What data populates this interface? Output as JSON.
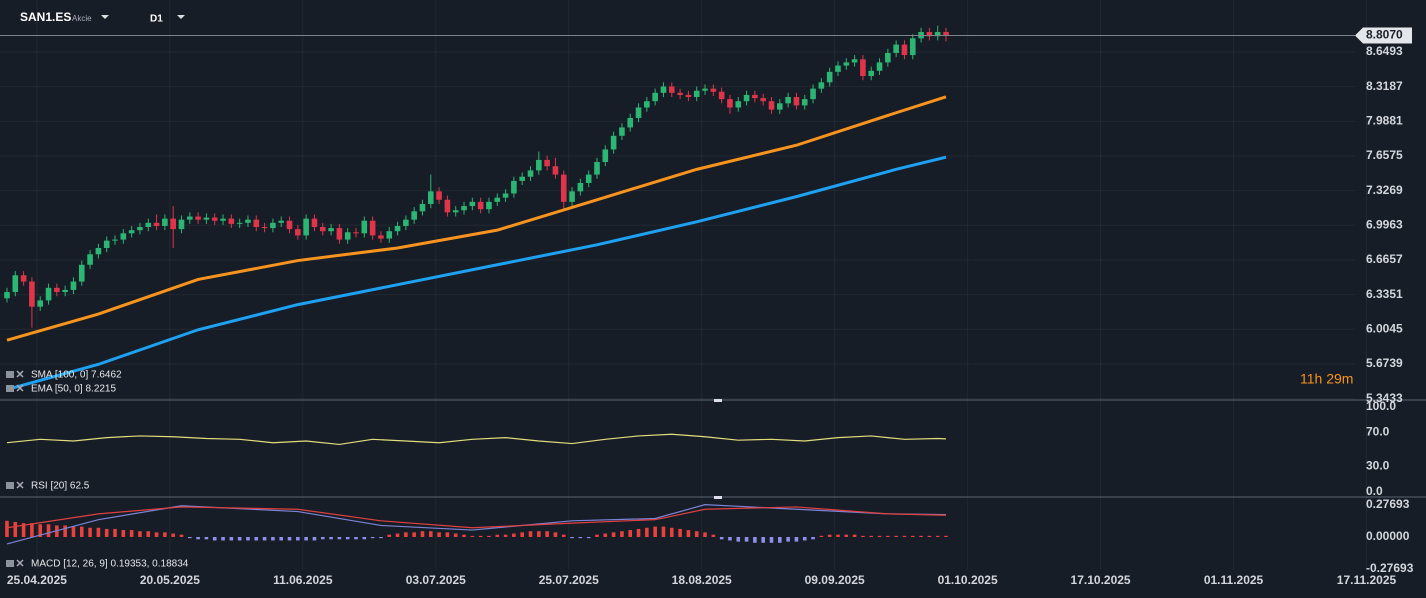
{
  "header": {
    "symbol": "SAN1.ES",
    "asset_type": "Akcie",
    "timeframe": "D1"
  },
  "countdown": "11h 29m",
  "chart_data": [
    {
      "type": "candlestick",
      "up_color": "#2bb673",
      "down_color": "#e0344b",
      "xlim": [
        -0.84,
        170.76
      ],
      "xticks": [
        {
          "value": 3.6,
          "label": "25.04.2025"
        },
        {
          "value": 19.6,
          "label": "20.05.2025"
        },
        {
          "value": 35.6,
          "label": "11.06.2025"
        },
        {
          "value": 51.6,
          "label": "03.07.2025"
        },
        {
          "value": 67.6,
          "label": "25.07.2025"
        },
        {
          "value": 83.6,
          "label": "18.08.2025"
        },
        {
          "value": 99.6,
          "label": "09.09.2025"
        },
        {
          "value": 115.6,
          "label": "01.10.2025"
        },
        {
          "value": 131.6,
          "label": "17.10.2025"
        },
        {
          "value": 147.6,
          "label": "01.11.2025"
        },
        {
          "value": 163.6,
          "label": "17.11.2025"
        }
      ],
      "ylim": [
        5.33,
        9.05
      ],
      "yticks": [
        5.3433,
        5.6739,
        6.0045,
        6.3351,
        6.6657,
        6.9963,
        7.3269,
        7.6575,
        7.9881,
        8.3187,
        8.6493
      ],
      "grid": true,
      "last_price": {
        "value": 8.807,
        "label": "8.8070"
      },
      "candles": [
        [
          6.3,
          6.4,
          6.26,
          6.36
        ],
        [
          6.36,
          6.56,
          6.32,
          6.52
        ],
        [
          6.52,
          6.56,
          6.42,
          6.46
        ],
        [
          6.46,
          6.5,
          6.02,
          6.22
        ],
        [
          6.22,
          6.32,
          6.18,
          6.28
        ],
        [
          6.28,
          6.44,
          6.24,
          6.4
        ],
        [
          6.4,
          6.44,
          6.32,
          6.36
        ],
        [
          6.36,
          6.42,
          6.32,
          6.38
        ],
        [
          6.38,
          6.5,
          6.34,
          6.46
        ],
        [
          6.46,
          6.66,
          6.42,
          6.62
        ],
        [
          6.62,
          6.76,
          6.58,
          6.72
        ],
        [
          6.72,
          6.82,
          6.68,
          6.78
        ],
        [
          6.78,
          6.89,
          6.74,
          6.85
        ],
        [
          6.85,
          6.9,
          6.81,
          6.86
        ],
        [
          6.86,
          6.96,
          6.82,
          6.92
        ],
        [
          6.92,
          6.99,
          6.88,
          6.95
        ],
        [
          6.95,
          7.02,
          6.91,
          6.98
        ],
        [
          6.98,
          7.06,
          6.94,
          7.02
        ],
        [
          7.02,
          7.1,
          6.95,
          6.99
        ],
        [
          6.99,
          7.1,
          6.95,
          7.06
        ],
        [
          7.06,
          7.18,
          6.78,
          6.96
        ],
        [
          6.96,
          7.09,
          6.92,
          7.05
        ],
        [
          7.05,
          7.12,
          7.01,
          7.08
        ],
        [
          7.08,
          7.12,
          7.01,
          7.05
        ],
        [
          7.05,
          7.11,
          7.01,
          7.07
        ],
        [
          7.07,
          7.11,
          7.0,
          7.04
        ],
        [
          7.04,
          7.1,
          7.0,
          7.06
        ],
        [
          7.06,
          7.1,
          6.97,
          7.01
        ],
        [
          7.01,
          7.06,
          6.97,
          7.02
        ],
        [
          7.02,
          7.09,
          6.98,
          7.05
        ],
        [
          7.05,
          7.09,
          6.94,
          6.98
        ],
        [
          6.98,
          7.02,
          6.93,
          6.97
        ],
        [
          6.97,
          7.06,
          6.93,
          7.02
        ],
        [
          7.02,
          7.08,
          6.98,
          7.04
        ],
        [
          7.04,
          7.08,
          6.92,
          6.96
        ],
        [
          6.96,
          7.0,
          6.86,
          6.9
        ],
        [
          6.9,
          7.1,
          6.86,
          7.06
        ],
        [
          7.06,
          7.1,
          6.94,
          6.98
        ],
        [
          6.98,
          7.02,
          6.9,
          6.94
        ],
        [
          6.94,
          7.01,
          6.9,
          6.97
        ],
        [
          6.97,
          7.01,
          6.82,
          6.86
        ],
        [
          6.86,
          6.97,
          6.82,
          6.93
        ],
        [
          6.93,
          6.97,
          6.88,
          6.92
        ],
        [
          6.92,
          7.08,
          6.88,
          7.04
        ],
        [
          7.04,
          7.08,
          6.86,
          6.9
        ],
        [
          6.9,
          6.94,
          6.83,
          6.87
        ],
        [
          6.87,
          6.98,
          6.83,
          6.94
        ],
        [
          6.94,
          7.03,
          6.9,
          6.99
        ],
        [
          6.99,
          7.09,
          6.95,
          7.05
        ],
        [
          7.05,
          7.17,
          7.01,
          7.13
        ],
        [
          7.13,
          7.24,
          7.09,
          7.2
        ],
        [
          7.2,
          7.48,
          7.16,
          7.32
        ],
        [
          7.32,
          7.36,
          7.2,
          7.24
        ],
        [
          7.24,
          7.28,
          7.08,
          7.12
        ],
        [
          7.12,
          7.18,
          7.08,
          7.14
        ],
        [
          7.14,
          7.22,
          7.1,
          7.18
        ],
        [
          7.18,
          7.26,
          7.14,
          7.22
        ],
        [
          7.22,
          7.26,
          7.11,
          7.15
        ],
        [
          7.15,
          7.26,
          7.11,
          7.22
        ],
        [
          7.22,
          7.3,
          7.18,
          7.26
        ],
        [
          7.26,
          7.34,
          7.22,
          7.3
        ],
        [
          7.3,
          7.46,
          7.26,
          7.42
        ],
        [
          7.42,
          7.5,
          7.38,
          7.46
        ],
        [
          7.46,
          7.56,
          7.42,
          7.52
        ],
        [
          7.52,
          7.7,
          7.48,
          7.62
        ],
        [
          7.62,
          7.66,
          7.52,
          7.56
        ],
        [
          7.56,
          7.64,
          7.44,
          7.48
        ],
        [
          7.48,
          7.52,
          7.15,
          7.22
        ],
        [
          7.22,
          7.36,
          7.18,
          7.32
        ],
        [
          7.32,
          7.44,
          7.28,
          7.4
        ],
        [
          7.4,
          7.52,
          7.36,
          7.48
        ],
        [
          7.48,
          7.64,
          7.44,
          7.6
        ],
        [
          7.6,
          7.76,
          7.56,
          7.72
        ],
        [
          7.72,
          7.89,
          7.68,
          7.85
        ],
        [
          7.85,
          7.97,
          7.81,
          7.93
        ],
        [
          7.93,
          8.06,
          7.89,
          8.02
        ],
        [
          8.02,
          8.16,
          7.98,
          8.12
        ],
        [
          8.12,
          8.22,
          8.08,
          8.18
        ],
        [
          8.18,
          8.3,
          8.14,
          8.26
        ],
        [
          8.26,
          8.36,
          8.22,
          8.32
        ],
        [
          8.32,
          8.36,
          8.22,
          8.26
        ],
        [
          8.26,
          8.3,
          8.2,
          8.24
        ],
        [
          8.24,
          8.28,
          8.18,
          8.22
        ],
        [
          8.22,
          8.32,
          8.18,
          8.28
        ],
        [
          8.28,
          8.34,
          8.24,
          8.3
        ],
        [
          8.3,
          8.34,
          8.23,
          8.27
        ],
        [
          8.27,
          8.31,
          8.16,
          8.2
        ],
        [
          8.2,
          8.24,
          8.06,
          8.12
        ],
        [
          8.12,
          8.22,
          8.08,
          8.18
        ],
        [
          8.18,
          8.28,
          8.14,
          8.24
        ],
        [
          8.24,
          8.28,
          8.17,
          8.21
        ],
        [
          8.21,
          8.25,
          8.14,
          8.18
        ],
        [
          8.18,
          8.22,
          8.06,
          8.1
        ],
        [
          8.1,
          8.2,
          8.06,
          8.16
        ],
        [
          8.16,
          8.26,
          8.12,
          8.22
        ],
        [
          8.22,
          8.26,
          8.1,
          8.14
        ],
        [
          8.14,
          8.24,
          8.1,
          8.2
        ],
        [
          8.2,
          8.34,
          8.16,
          8.3
        ],
        [
          8.3,
          8.4,
          8.26,
          8.36
        ],
        [
          8.36,
          8.5,
          8.32,
          8.46
        ],
        [
          8.46,
          8.56,
          8.42,
          8.52
        ],
        [
          8.52,
          8.59,
          8.48,
          8.55
        ],
        [
          8.55,
          8.62,
          8.51,
          8.58
        ],
        [
          8.58,
          8.62,
          8.38,
          8.42
        ],
        [
          8.42,
          8.51,
          8.38,
          8.47
        ],
        [
          8.47,
          8.59,
          8.43,
          8.55
        ],
        [
          8.55,
          8.68,
          8.51,
          8.64
        ],
        [
          8.64,
          8.76,
          8.6,
          8.72
        ],
        [
          8.72,
          8.76,
          8.58,
          8.62
        ],
        [
          8.62,
          8.82,
          8.58,
          8.78
        ],
        [
          8.78,
          8.88,
          8.74,
          8.84
        ],
        [
          8.84,
          8.88,
          8.76,
          8.8
        ],
        [
          8.8,
          8.9,
          8.76,
          8.84
        ],
        [
          8.84,
          8.88,
          8.75,
          8.81
        ]
      ],
      "overlays": [
        {
          "legend": "SMA [100, 0] 7.6462",
          "color": "#1ea1f2",
          "x": [
            0,
            11,
            23,
            35,
            47,
            59,
            71,
            83,
            95,
            107,
            113
          ],
          "values": [
            5.43,
            5.67,
            6.0,
            6.24,
            6.43,
            6.62,
            6.81,
            7.03,
            7.27,
            7.53,
            7.6462
          ]
        },
        {
          "legend": "EMA [50, 0] 8.2215",
          "color": "#f7931e",
          "x": [
            0,
            11,
            23,
            35,
            47,
            59,
            71,
            83,
            95,
            107,
            113
          ],
          "values": [
            5.9,
            6.15,
            6.48,
            6.66,
            6.78,
            6.95,
            7.24,
            7.53,
            7.76,
            8.07,
            8.2215
          ]
        }
      ]
    },
    {
      "type": "line",
      "legend": "RSI [20] 62.5",
      "color": "#e3dc7c",
      "ylim": [
        -5.9,
        107.1
      ],
      "yticks": [
        {
          "value": 0,
          "label": "0.0"
        },
        {
          "value": 30,
          "label": "30.0"
        },
        {
          "value": 70,
          "label": "70.0"
        },
        {
          "value": 100,
          "label": "100.0"
        }
      ],
      "x": [
        0,
        4,
        8,
        12,
        16,
        20,
        24,
        28,
        32,
        36,
        40,
        44,
        48,
        52,
        56,
        60,
        64,
        68,
        72,
        76,
        80,
        84,
        88,
        92,
        96,
        100,
        104,
        108,
        112,
        113
      ],
      "values": [
        58,
        62,
        60,
        64,
        66,
        65,
        63,
        62,
        58,
        60,
        56,
        62,
        60,
        58,
        62,
        64,
        60,
        57,
        62,
        66,
        68,
        65,
        61,
        62,
        60,
        64,
        66,
        62,
        63,
        62.5
      ]
    },
    {
      "type": "macd",
      "legend": "MACD [12, 26, 9] 0.19353, 0.18834",
      "ylim": [
        -0.2855,
        0.3287
      ],
      "yticks": [
        -0.27693,
        {
          "value": 0,
          "label": "0.00000"
        },
        0.27693
      ],
      "positive_color": "#e8413e",
      "negative_color": "#8d8fe8",
      "histogram": [
        0.14,
        0.13,
        0.12,
        0.12,
        0.11,
        0.11,
        0.1,
        0.1,
        0.09,
        0.09,
        0.08,
        0.08,
        0.07,
        0.07,
        0.06,
        0.06,
        0.05,
        0.05,
        0.04,
        0.04,
        0.03,
        0.02,
        -0.01,
        -0.02,
        -0.02,
        -0.03,
        -0.03,
        -0.03,
        -0.03,
        -0.03,
        -0.03,
        -0.03,
        -0.03,
        -0.03,
        -0.03,
        -0.03,
        -0.03,
        -0.03,
        -0.02,
        -0.02,
        -0.02,
        -0.02,
        -0.02,
        -0.02,
        -0.01,
        -0.01,
        0.02,
        0.03,
        0.04,
        0.04,
        0.05,
        0.05,
        0.04,
        0.04,
        0.03,
        0.02,
        0.01,
        0.01,
        0.01,
        0.02,
        0.02,
        0.03,
        0.04,
        0.05,
        0.05,
        0.05,
        0.04,
        0.02,
        -0.01,
        -0.01,
        -0.01,
        0.02,
        0.03,
        0.04,
        0.05,
        0.06,
        0.07,
        0.08,
        0.09,
        0.09,
        0.08,
        0.07,
        0.06,
        0.05,
        0.04,
        0.02,
        -0.02,
        -0.03,
        -0.04,
        -0.04,
        -0.05,
        -0.05,
        -0.05,
        -0.05,
        -0.04,
        -0.04,
        -0.03,
        -0.02,
        0.01,
        0.02,
        0.02,
        0.02,
        0.02,
        0.01,
        0.01,
        0.01,
        0.01,
        0.01,
        0.01,
        0.01,
        0.01,
        0.01,
        0.01,
        0.01
      ],
      "series": [
        {
          "color": "#7b84d6",
          "x": [
            0,
            11,
            21,
            35,
            45,
            56,
            68,
            78,
            84,
            95,
            106,
            113
          ],
          "values": [
            -0.06,
            0.15,
            0.27,
            0.22,
            0.1,
            0.06,
            0.14,
            0.16,
            0.28,
            0.24,
            0.2,
            0.19353
          ]
        },
        {
          "color": "#e04040",
          "x": [
            0,
            11,
            21,
            35,
            45,
            56,
            68,
            78,
            84,
            95,
            106,
            113
          ],
          "values": [
            0.08,
            0.2,
            0.26,
            0.24,
            0.14,
            0.08,
            0.12,
            0.15,
            0.24,
            0.26,
            0.2,
            0.18834
          ]
        }
      ]
    }
  ]
}
